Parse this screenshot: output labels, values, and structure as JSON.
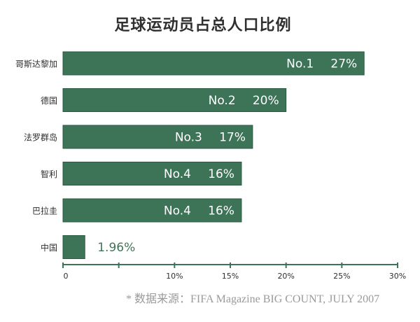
{
  "colors": {
    "bar": "#3d7457",
    "bar_stroke": "#2a5a40",
    "axis": "#3d7457",
    "text": "#2f2f2f",
    "label_inside": "#ffffff",
    "label_outside": "#3d7457",
    "note": "#9a9a9a"
  },
  "chart_data": {
    "type": "bar",
    "orientation": "horizontal",
    "title": "足球运动员占总人口比例",
    "categories": [
      "哥斯达黎加",
      "德国",
      "法罗群岛",
      "智利",
      "巴拉圭",
      "中国"
    ],
    "values": [
      27,
      20,
      17,
      16,
      16,
      1.96
    ],
    "rank_labels": [
      "No.1",
      "No.2",
      "No.3",
      "No.4",
      "No.4",
      ""
    ],
    "value_labels": [
      "27%",
      "20%",
      "17%",
      "16%",
      "16%",
      "1.96%"
    ],
    "xlim": [
      0,
      30
    ],
    "xticks": [
      0,
      5,
      10,
      15,
      20,
      25,
      30
    ],
    "xtick_labels": [
      "0",
      "",
      "10%",
      "15%",
      "20%",
      "25%",
      "30%"
    ],
    "grid": false
  },
  "footer": {
    "source_note": "* 数据来源：FIFA Magazine BIG COUNT, JULY 2007"
  }
}
